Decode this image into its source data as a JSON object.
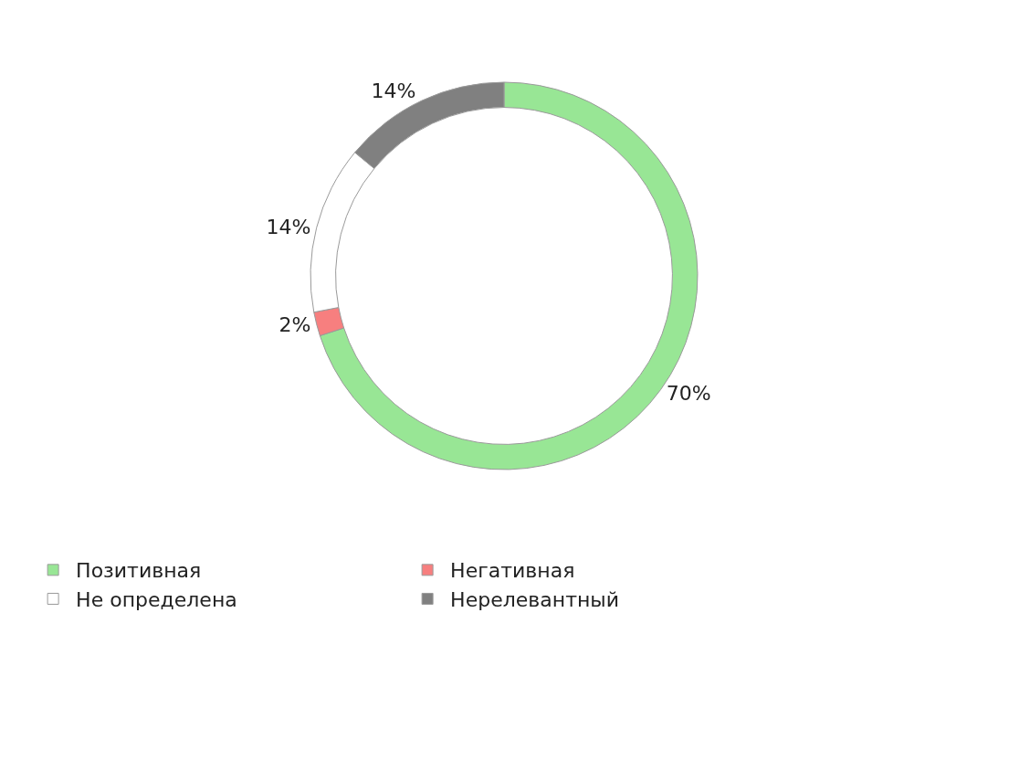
{
  "chart_data": {
    "type": "donut",
    "categories": [
      "Позитивная",
      "Негативная",
      "Не определена",
      "Нерелевантный"
    ],
    "values": [
      70,
      2,
      14,
      14
    ],
    "colors": [
      "#98e695",
      "#f77f7f",
      "#ffffff",
      "#808080"
    ],
    "value_labels": [
      "70%",
      "2%",
      "14%",
      "14%"
    ],
    "legend": "bottom"
  }
}
